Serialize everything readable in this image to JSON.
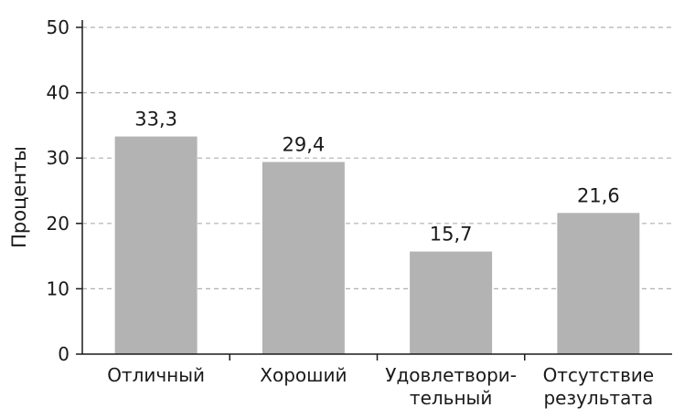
{
  "chart_data": {
    "type": "bar",
    "categories": [
      [
        "Отличный"
      ],
      [
        "Хороший"
      ],
      [
        "Удовлетвори-",
        "тельный"
      ],
      [
        "Отсутствие",
        "результата"
      ]
    ],
    "values": [
      33.3,
      29.4,
      15.7,
      21.6
    ],
    "data_labels": [
      "33,3",
      "29,4",
      "15,7",
      "21,6"
    ],
    "ylabel": "Проценты",
    "xlabel": "",
    "title": "",
    "ylim": [
      0,
      50
    ],
    "yticks": [
      0,
      10,
      20,
      30,
      40,
      50
    ],
    "grid": true,
    "bar_color": "#b3b3b3",
    "grid_color": "#b0b0b0",
    "axis_color": "#1a1a1a"
  }
}
